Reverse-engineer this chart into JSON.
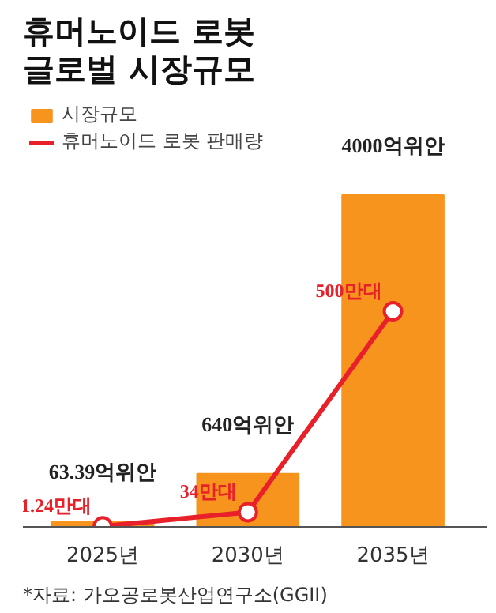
{
  "chart_data": {
    "type": "bar",
    "title": "휴머노이드 로봇 글로벌 시장규모",
    "categories": [
      "2025년",
      "2030년",
      "2035년"
    ],
    "series": [
      {
        "name": "시장규모",
        "color": "#f7941d",
        "values": [
          63.39,
          640,
          4000
        ],
        "value_labels": [
          "63.39억위안",
          "640억위안",
          "4000억위안"
        ]
      },
      {
        "name": "휴머노이드 로봇 판매량",
        "type": "line",
        "axis": "y2",
        "color": "#e8202a",
        "marker": "circle",
        "values": [
          1.24,
          34,
          500
        ],
        "value_labels": [
          "1.24만대",
          "34만대",
          "500만대"
        ]
      }
    ],
    "legend": "top left",
    "grid": false,
    "annotations": [
      "*자료: 가오공로봇산업연구소(GGII)"
    ]
  }
}
